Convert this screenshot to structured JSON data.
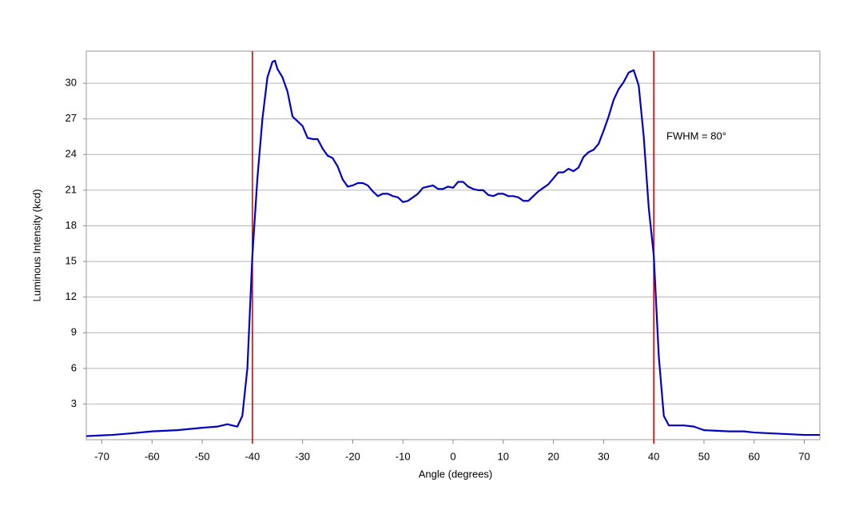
{
  "chart_data": {
    "type": "line",
    "x_label": "Angle (degrees)",
    "y_label": "Luminous Intensity (kcd)",
    "annotation": "FWHM = 80°",
    "x": [
      -73.1,
      -68,
      -65,
      -60,
      -55,
      -50,
      -47,
      -45,
      -43,
      -42,
      -41,
      -40,
      -39,
      -38,
      -37,
      -36,
      -35.5,
      -35,
      -34,
      -33,
      -32,
      -31,
      -30,
      -29,
      -28,
      -27,
      -26,
      -25,
      -24,
      -23,
      -22,
      -21,
      -20,
      -19,
      -18,
      -17,
      -16,
      -15,
      -14,
      -13,
      -12,
      -11,
      -10,
      -9,
      -8,
      -7,
      -6,
      -5,
      -4,
      -3,
      -2,
      -1,
      0,
      1,
      2,
      3,
      4,
      5,
      6,
      7,
      8,
      9,
      10,
      11,
      12,
      13,
      14,
      15,
      16,
      17,
      18,
      19,
      20,
      21,
      22,
      23,
      24,
      25,
      26,
      27,
      28,
      29,
      30,
      31,
      32,
      33,
      34,
      35,
      36,
      37,
      38,
      39,
      40,
      41,
      42,
      43,
      44,
      46,
      48,
      50,
      55,
      58,
      60,
      65,
      70,
      73.1
    ],
    "values": [
      0.3,
      0.4,
      0.5,
      0.7,
      0.8,
      1.0,
      1.1,
      1.3,
      1.1,
      2,
      6,
      15.5,
      22,
      27,
      30.5,
      31.8,
      31.9,
      31.2,
      30.5,
      29.3,
      27.2,
      26.8,
      26.4,
      25.4,
      25.3,
      25.3,
      24.5,
      23.9,
      23.7,
      23.0,
      21.9,
      21.3,
      21.4,
      21.6,
      21.6,
      21.4,
      20.9,
      20.5,
      20.7,
      20.7,
      20.5,
      20.4,
      20.0,
      20.1,
      20.4,
      20.7,
      21.2,
      21.3,
      21.4,
      21.1,
      21.1,
      21.3,
      21.2,
      21.7,
      21.7,
      21.3,
      21.1,
      21.0,
      21.0,
      20.6,
      20.5,
      20.7,
      20.7,
      20.5,
      20.5,
      20.4,
      20.1,
      20.1,
      20.5,
      20.9,
      21.2,
      21.5,
      22.0,
      22.5,
      22.5,
      22.8,
      22.6,
      22.9,
      23.8,
      24.2,
      24.4,
      24.9,
      26.0,
      27.2,
      28.6,
      29.5,
      30.1,
      30.9,
      31.1,
      29.8,
      25.5,
      19.5,
      15.5,
      7,
      2,
      1.2,
      1.2,
      1.2,
      1.1,
      0.8,
      0.7,
      0.7,
      0.6,
      0.5,
      0.4,
      0.4
    ],
    "color": "#0000c8",
    "vlines": [
      -40,
      40
    ],
    "vline_color": "#e00000",
    "xlim": [
      -73.1,
      73.1
    ],
    "xticks": [
      -70,
      -60,
      -50,
      -40,
      -30,
      -20,
      -10,
      0,
      10,
      20,
      30,
      40,
      50,
      60,
      70
    ],
    "ylim": [
      0,
      32.7
    ],
    "yticks": [
      3,
      6,
      9,
      12,
      15,
      18,
      21,
      24,
      27,
      30
    ],
    "grid": true
  }
}
